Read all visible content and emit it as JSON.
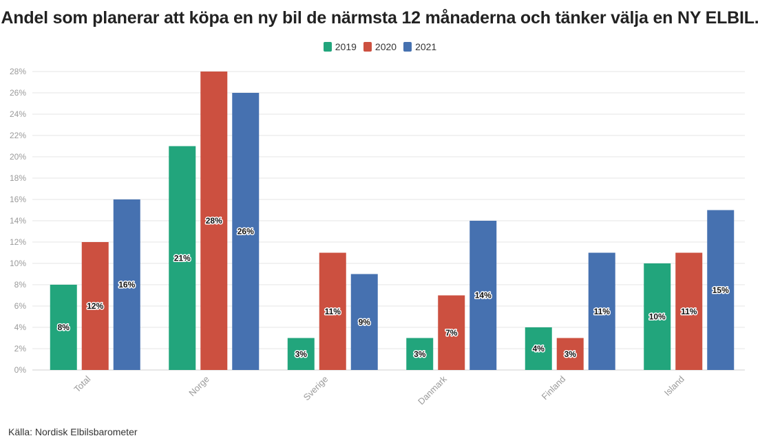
{
  "chart_data": {
    "type": "bar",
    "title": "Andel som planerar att köpa en ny bil de närmsta 12 månaderna och tänker välja en NY ELBIL.",
    "categories": [
      "Total",
      "Norge",
      "Sverige",
      "Danmark",
      "Finland",
      "Island"
    ],
    "series": [
      {
        "name": "2019",
        "color": "#22a57c",
        "values": [
          8,
          21,
          3,
          3,
          4,
          10
        ]
      },
      {
        "name": "2020",
        "color": "#cc5040",
        "values": [
          12,
          28,
          11,
          7,
          3,
          11
        ]
      },
      {
        "name": "2021",
        "color": "#4671b0",
        "values": [
          16,
          26,
          9,
          14,
          11,
          15
        ]
      }
    ],
    "ylim": [
      0,
      28
    ],
    "yticks": [
      0,
      2,
      4,
      6,
      8,
      10,
      12,
      14,
      16,
      18,
      20,
      22,
      24,
      26,
      28
    ],
    "value_suffix": "%",
    "legend_position": "top",
    "grid": true,
    "xlabel": "",
    "ylabel": ""
  },
  "source": "Källa: Nordisk Elbilsbarometer"
}
